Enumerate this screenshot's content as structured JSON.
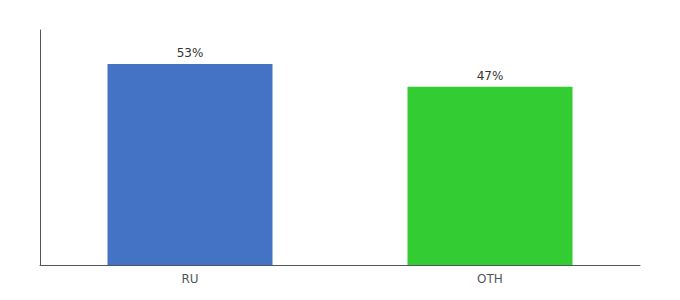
{
  "chart_data": {
    "type": "bar",
    "categories": [
      "RU",
      "OTH"
    ],
    "values": [
      53,
      47
    ],
    "value_labels": [
      "53%",
      "47%"
    ],
    "colors": [
      "#4472c4",
      "#33cc33"
    ],
    "ylim": [
      0,
      62
    ],
    "data_labels": true,
    "grid": false,
    "tick_labels": "x"
  }
}
